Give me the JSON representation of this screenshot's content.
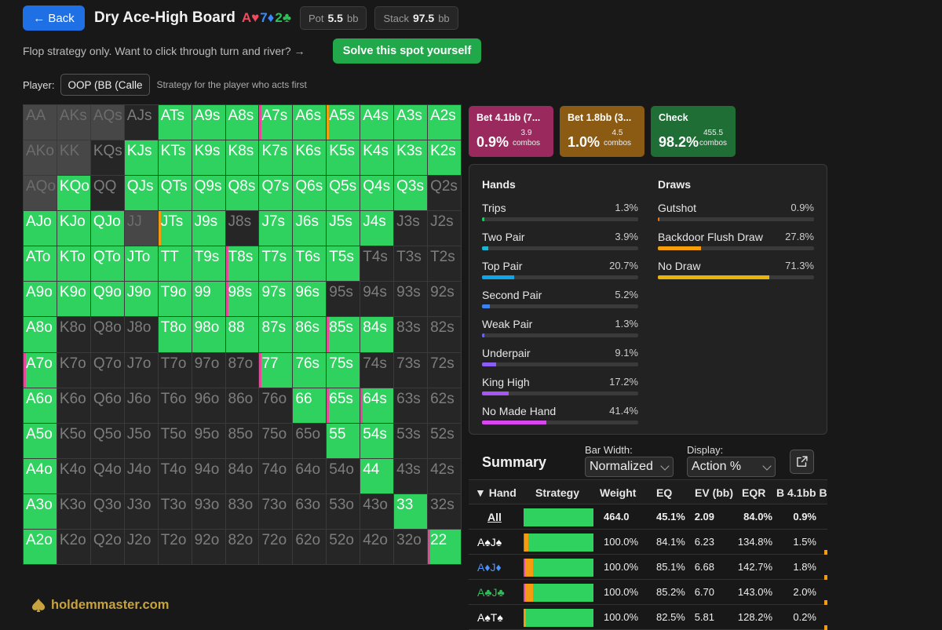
{
  "header": {
    "back_label": "← Back",
    "title": "Dry Ace-High Board",
    "board": [
      {
        "rank": "A",
        "suit": "♥",
        "color": "#ef4b5f"
      },
      {
        "rank": "7",
        "suit": "♦",
        "color": "#3a8bff"
      },
      {
        "rank": "2",
        "suit": "♣",
        "color": "#2fbe58"
      }
    ],
    "pot_label": "Pot",
    "pot_value": "5.5",
    "pot_unit": "bb",
    "stack_label": "Stack",
    "stack_value": "97.5",
    "stack_unit": "bb"
  },
  "hint": "Flop strategy only. Want to click through turn and river? →",
  "solve_label": "Solve this spot yourself",
  "player": {
    "label": "Player:",
    "selected": "OOP (BB (Calle",
    "description": "Strategy for the player who acts first"
  },
  "range_grid": [
    [
      "AA",
      "AKs",
      "AQs",
      "AJs",
      "ATs",
      "A9s",
      "A8s",
      "A7s",
      "A6s",
      "A5s",
      "A4s",
      "A3s",
      "A2s"
    ],
    [
      "AKo",
      "KK",
      "KQs",
      "KJs",
      "KTs",
      "K9s",
      "K8s",
      "K7s",
      "K6s",
      "K5s",
      "K4s",
      "K3s",
      "K2s"
    ],
    [
      "AQo",
      "KQo",
      "QQ",
      "QJs",
      "QTs",
      "Q9s",
      "Q8s",
      "Q7s",
      "Q6s",
      "Q5s",
      "Q4s",
      "Q3s",
      "Q2s"
    ],
    [
      "AJo",
      "KJo",
      "QJo",
      "JJ",
      "JTs",
      "J9s",
      "J8s",
      "J7s",
      "J6s",
      "J5s",
      "J4s",
      "J3s",
      "J2s"
    ],
    [
      "ATo",
      "KTo",
      "QTo",
      "JTo",
      "TT",
      "T9s",
      "T8s",
      "T7s",
      "T6s",
      "T5s",
      "T4s",
      "T3s",
      "T2s"
    ],
    [
      "A9o",
      "K9o",
      "Q9o",
      "J9o",
      "T9o",
      "99",
      "98s",
      "97s",
      "96s",
      "95s",
      "94s",
      "93s",
      "92s"
    ],
    [
      "A8o",
      "K8o",
      "Q8o",
      "J8o",
      "T8o",
      "98o",
      "88",
      "87s",
      "86s",
      "85s",
      "84s",
      "83s",
      "82s"
    ],
    [
      "A7o",
      "K7o",
      "Q7o",
      "J7o",
      "T7o",
      "97o",
      "87o",
      "77",
      "76s",
      "75s",
      "74s",
      "73s",
      "72s"
    ],
    [
      "A6o",
      "K6o",
      "Q6o",
      "J6o",
      "T6o",
      "96o",
      "86o",
      "76o",
      "66",
      "65s",
      "64s",
      "63s",
      "62s"
    ],
    [
      "A5o",
      "K5o",
      "Q5o",
      "J5o",
      "T5o",
      "95o",
      "85o",
      "75o",
      "65o",
      "55",
      "54s",
      "53s",
      "52s"
    ],
    [
      "A4o",
      "K4o",
      "Q4o",
      "J4o",
      "T4o",
      "94o",
      "84o",
      "74o",
      "64o",
      "54o",
      "44",
      "43s",
      "42s"
    ],
    [
      "A3o",
      "K3o",
      "Q3o",
      "J3o",
      "T3o",
      "93o",
      "83o",
      "73o",
      "63o",
      "53o",
      "43o",
      "33",
      "32s"
    ],
    [
      "A2o",
      "K2o",
      "Q2o",
      "J2o",
      "T2o",
      "92o",
      "82o",
      "72o",
      "62o",
      "52o",
      "42o",
      "32o",
      "22"
    ]
  ],
  "range_state": [
    "ddd gggpgoggg",
    "dd gggggggggg",
    "dg ggggggggg",
    "gggdog gggg  ",
    "ggggggpggg   ",
    "ggggggpgg    ",
    "g   gggggpg  ",
    "p      pgg   ",
    "g       gpp  ",
    "g        gg  ",
    "g         g  ",
    "g          g ",
    "g           p"
  ],
  "actions": [
    {
      "label": "Bet 4.1bb (7...",
      "pct": "0.9%",
      "combos_value": "3.9",
      "combos_unit": "combos",
      "color": "#9a2a5e"
    },
    {
      "label": "Bet 1.8bb (3...",
      "pct": "1.0%",
      "combos_value": "4.5",
      "combos_unit": "combos",
      "color": "#8c5b13"
    },
    {
      "label": "Check",
      "pct": "98.2%",
      "combos_value": "455.5",
      "combos_unit": "combos",
      "color": "#1e6e35"
    }
  ],
  "hands_title": "Hands",
  "hands": [
    {
      "name": "Trips",
      "value": "1.3%",
      "pct": 1.3,
      "color": "#22c55e"
    },
    {
      "name": "Two Pair",
      "value": "3.9%",
      "pct": 3.9,
      "color": "#14b8d4"
    },
    {
      "name": "Top Pair",
      "value": "20.7%",
      "pct": 20.7,
      "color": "#0ea5e9"
    },
    {
      "name": "Second Pair",
      "value": "5.2%",
      "pct": 5.2,
      "color": "#3b82f6"
    },
    {
      "name": "Weak Pair",
      "value": "1.3%",
      "pct": 1.3,
      "color": "#6366f1"
    },
    {
      "name": "Underpair",
      "value": "9.1%",
      "pct": 9.1,
      "color": "#8b5cf6"
    },
    {
      "name": "King High",
      "value": "17.2%",
      "pct": 17.2,
      "color": "#a855f7"
    },
    {
      "name": "No Made Hand",
      "value": "41.4%",
      "pct": 41.4,
      "color": "#d946ef"
    }
  ],
  "draws_title": "Draws",
  "draws": [
    {
      "name": "Gutshot",
      "value": "0.9%",
      "pct": 0.9,
      "color": "#f97316"
    },
    {
      "name": "Backdoor Flush Draw",
      "value": "27.8%",
      "pct": 27.8,
      "color": "#f59e0b"
    },
    {
      "name": "No Draw",
      "value": "71.3%",
      "pct": 71.3,
      "color": "#eab308"
    }
  ],
  "summary": {
    "title": "Summary",
    "bar_width_label": "Bar Width:",
    "bar_width_value": "Normalized",
    "display_label": "Display:",
    "display_value": "Action %",
    "columns": {
      "hand": "▼ Hand",
      "strategy": "Strategy",
      "weight": "Weight",
      "eq": "EQ",
      "ev": "EV (bb)",
      "eqr": "EQR",
      "b": "B 4.1bb B"
    },
    "rows": [
      {
        "hand": "All",
        "weight": "464.0",
        "eq": "45.1%",
        "ev": "2.09",
        "eqr": "84.0%",
        "b": "0.9%",
        "bet1": 0,
        "bet2": 0,
        "bold": true
      },
      {
        "hand": "A♠J♠",
        "hand_color": "#ffffff",
        "weight": "100.0%",
        "eq": "84.1%",
        "ev": "6.23",
        "eqr": "134.8%",
        "b": "1.5%",
        "bet1": 1.5,
        "bet2": 5
      },
      {
        "hand": "A♦J♦",
        "hand_color": "#4d94ff",
        "weight": "100.0%",
        "eq": "85.1%",
        "ev": "6.68",
        "eqr": "142.7%",
        "b": "1.8%",
        "bet1": 1.8,
        "bet2": 12
      },
      {
        "hand": "A♣J♣",
        "hand_color": "#2fbe58",
        "weight": "100.0%",
        "eq": "85.2%",
        "ev": "6.70",
        "eqr": "143.0%",
        "b": "2.0%",
        "bet1": 2.0,
        "bet2": 12
      },
      {
        "hand": "A♠T♠",
        "hand_color": "#ffffff",
        "weight": "100.0%",
        "eq": "82.5%",
        "ev": "5.81",
        "eqr": "128.2%",
        "b": "0.2%",
        "bet1": 0.2,
        "bet2": 3
      }
    ]
  },
  "brand": "holdemmaster.com",
  "colors": {
    "accent": "#1f6fe5",
    "check": "#2fd25f",
    "bet_large": "#e6499b",
    "bet_small": "#f39c12"
  }
}
